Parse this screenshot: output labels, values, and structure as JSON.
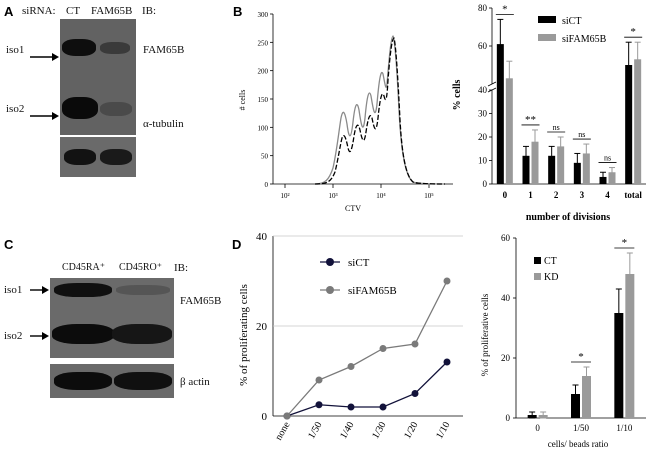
{
  "panelA": {
    "letter": "A",
    "sirna_label": "siRNA:",
    "lane1": "CT",
    "lane2": "FAM65B",
    "ib_label": "IB:",
    "iso1": "iso1",
    "iso2": "iso2",
    "protein1": "FAM65B",
    "protein2": "α-tubulin"
  },
  "panelB": {
    "letter": "B",
    "flow_ylabel": "# cells",
    "flow_xlabel": "CTV",
    "flow_yticks": [
      "0",
      "50",
      "100",
      "150",
      "200",
      "250",
      "300"
    ],
    "flow_xticks": [
      "10²",
      "10³",
      "10⁴",
      "10⁵"
    ]
  },
  "panelC": {
    "letter": "C",
    "lane1": "CD45RA⁺",
    "lane2": "CD45RO⁺",
    "ib_label": "IB:",
    "iso1": "iso1",
    "iso2": "iso2",
    "protein1": "FAM65B",
    "protein2": "β actin"
  },
  "panelD": {
    "letter": "D"
  },
  "chart_data": [
    {
      "type": "bar",
      "id": "divisions",
      "categories": [
        "0",
        "1",
        "2",
        "3",
        "4",
        "total"
      ],
      "series": [
        {
          "name": "siCT",
          "color": "#000000",
          "values": [
            61,
            12,
            12,
            9,
            3,
            50
          ],
          "errors": [
            13,
            4,
            4,
            4,
            2,
            12
          ]
        },
        {
          "name": "siFAM65B",
          "color": "#9a9a9a",
          "values": [
            43,
            18,
            16,
            13,
            5,
            53
          ],
          "errors": [
            9,
            5,
            4,
            4,
            2,
            9
          ]
        }
      ],
      "significance": [
        "*",
        "**",
        "ns",
        "ns",
        "ns",
        "*"
      ],
      "ylabel": "% cells",
      "xlabel": "number of divisions",
      "yticks": [
        0,
        10,
        20,
        30,
        40,
        60,
        80
      ],
      "broken_axis": true
    },
    {
      "type": "line",
      "id": "proliferating",
      "categories": [
        "none",
        "1/50",
        "1/40",
        "1/30",
        "1/20",
        "1/10"
      ],
      "series": [
        {
          "name": "siCT",
          "color": "#12123a",
          "values": [
            0,
            2.5,
            2,
            2,
            5,
            12
          ]
        },
        {
          "name": "siFAM65B",
          "color": "#7a7a7a",
          "values": [
            0,
            8,
            11,
            15,
            16,
            30
          ]
        }
      ],
      "ylabel": "% of proliferating cells",
      "ylim": [
        0,
        40
      ],
      "yticks": [
        0,
        20,
        40
      ]
    },
    {
      "type": "bar",
      "id": "ratio",
      "categories": [
        "0",
        "1/50",
        "1/10"
      ],
      "series": [
        {
          "name": "CT",
          "color": "#000000",
          "values": [
            1,
            8,
            35
          ],
          "errors": [
            1,
            3,
            8
          ]
        },
        {
          "name": "KD",
          "color": "#9a9a9a",
          "values": [
            1,
            14,
            48
          ],
          "errors": [
            1,
            3,
            7
          ]
        }
      ],
      "significance": [
        "",
        "*",
        "*"
      ],
      "ylabel": "% of proliferative cells",
      "xlabel": "cells/ beads ratio",
      "ylim": [
        0,
        60
      ],
      "yticks": [
        0,
        20,
        40,
        60
      ]
    }
  ]
}
